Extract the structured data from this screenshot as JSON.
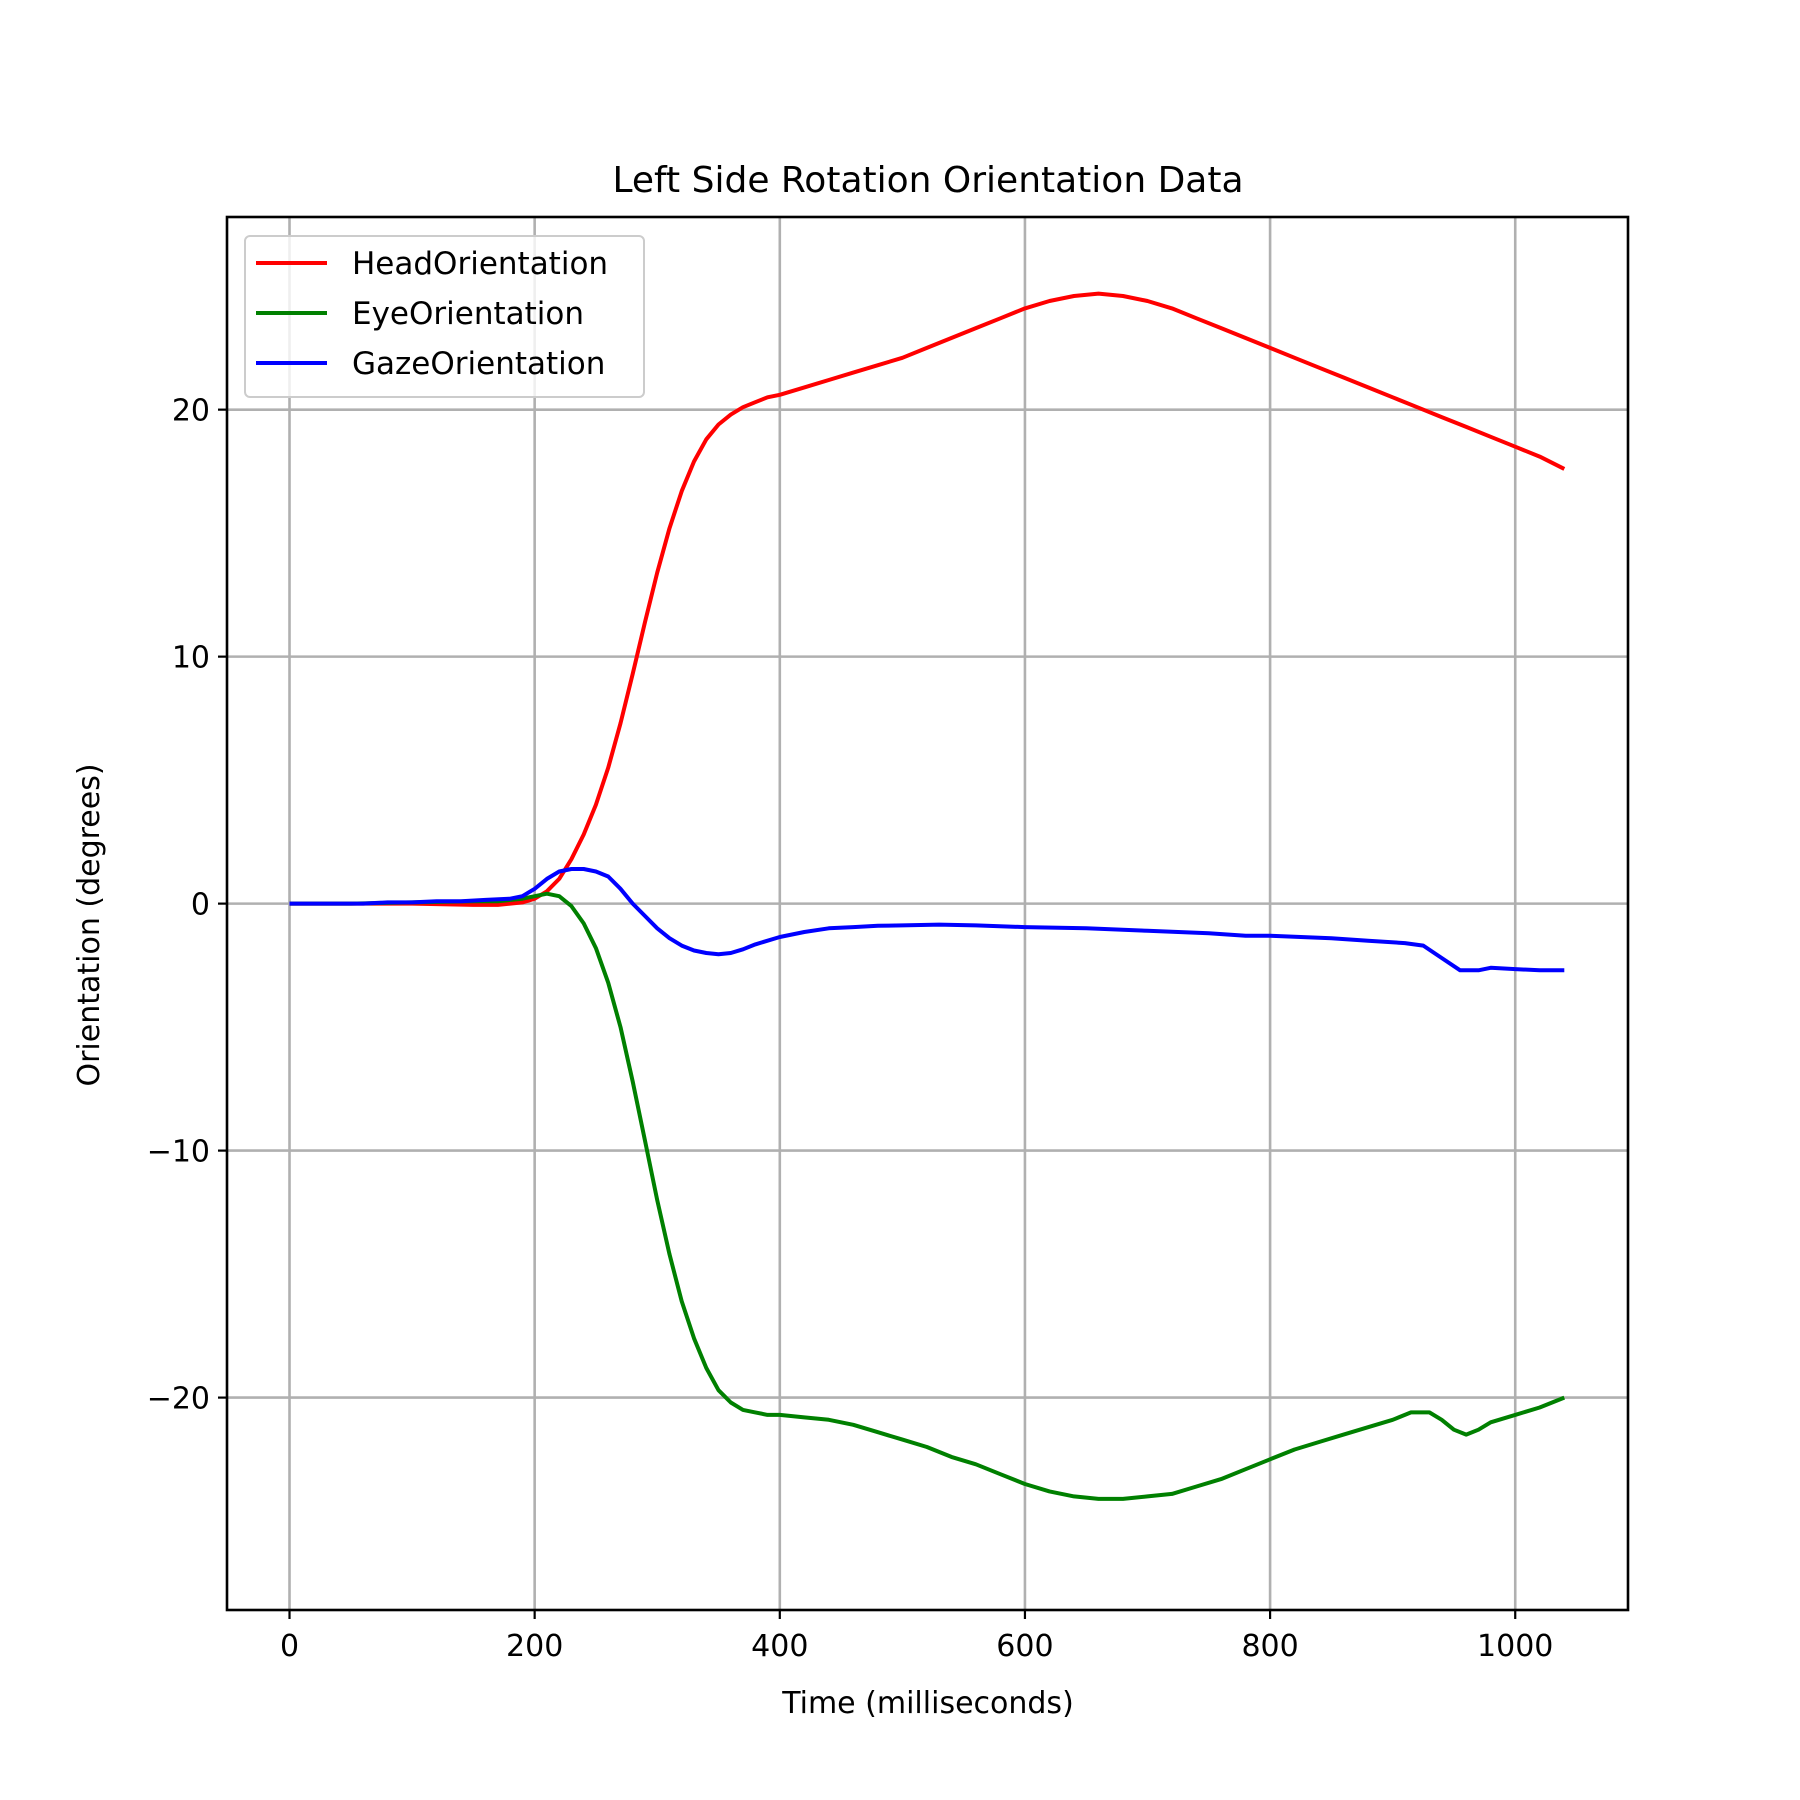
{
  "chart_data": {
    "type": "line",
    "title": "Left Side Rotation Orientation Data",
    "xlabel": "Time (milliseconds)",
    "ylabel": "Orientation (degrees)",
    "xlim": [
      -51,
      1092
    ],
    "ylim": [
      -28.6,
      27.8
    ],
    "x_ticks": [
      0,
      200,
      400,
      600,
      800,
      1000
    ],
    "x_tick_labels": [
      "0",
      "200",
      "400",
      "600",
      "800",
      "1000"
    ],
    "y_ticks": [
      -20,
      -10,
      0,
      10,
      20
    ],
    "y_tick_labels": [
      "−20",
      "−10",
      "0",
      "10",
      "20"
    ],
    "grid": true,
    "legend_position": "top-left",
    "series": [
      {
        "name": "HeadOrientation",
        "color": "#ff0000",
        "points": [
          [
            0,
            0.0
          ],
          [
            50,
            0.0
          ],
          [
            100,
            0.0
          ],
          [
            150,
            -0.05
          ],
          [
            170,
            -0.05
          ],
          [
            190,
            0.05
          ],
          [
            200,
            0.2
          ],
          [
            210,
            0.5
          ],
          [
            220,
            1.0
          ],
          [
            230,
            1.8
          ],
          [
            240,
            2.8
          ],
          [
            250,
            4.0
          ],
          [
            260,
            5.5
          ],
          [
            270,
            7.3
          ],
          [
            280,
            9.3
          ],
          [
            290,
            11.4
          ],
          [
            300,
            13.4
          ],
          [
            310,
            15.2
          ],
          [
            320,
            16.7
          ],
          [
            330,
            17.9
          ],
          [
            340,
            18.8
          ],
          [
            350,
            19.4
          ],
          [
            360,
            19.8
          ],
          [
            370,
            20.1
          ],
          [
            380,
            20.3
          ],
          [
            390,
            20.5
          ],
          [
            400,
            20.6
          ],
          [
            420,
            20.9
          ],
          [
            440,
            21.2
          ],
          [
            460,
            21.5
          ],
          [
            480,
            21.8
          ],
          [
            500,
            22.1
          ],
          [
            520,
            22.5
          ],
          [
            540,
            22.9
          ],
          [
            560,
            23.3
          ],
          [
            580,
            23.7
          ],
          [
            600,
            24.1
          ],
          [
            620,
            24.4
          ],
          [
            640,
            24.6
          ],
          [
            660,
            24.7
          ],
          [
            680,
            24.6
          ],
          [
            700,
            24.4
          ],
          [
            720,
            24.1
          ],
          [
            740,
            23.7
          ],
          [
            760,
            23.3
          ],
          [
            780,
            22.9
          ],
          [
            800,
            22.5
          ],
          [
            820,
            22.1
          ],
          [
            840,
            21.7
          ],
          [
            860,
            21.3
          ],
          [
            880,
            20.9
          ],
          [
            900,
            20.5
          ],
          [
            920,
            20.1
          ],
          [
            940,
            19.7
          ],
          [
            960,
            19.3
          ],
          [
            980,
            18.9
          ],
          [
            1000,
            18.5
          ],
          [
            1020,
            18.1
          ],
          [
            1040,
            17.6
          ]
        ]
      },
      {
        "name": "EyeOrientation",
        "color": "#008000",
        "points": [
          [
            0,
            0.0
          ],
          [
            50,
            0.0
          ],
          [
            100,
            0.05
          ],
          [
            150,
            0.1
          ],
          [
            170,
            0.1
          ],
          [
            190,
            0.2
          ],
          [
            200,
            0.3
          ],
          [
            210,
            0.4
          ],
          [
            220,
            0.3
          ],
          [
            230,
            -0.1
          ],
          [
            240,
            -0.8
          ],
          [
            250,
            -1.8
          ],
          [
            260,
            -3.2
          ],
          [
            270,
            -5.0
          ],
          [
            280,
            -7.2
          ],
          [
            290,
            -9.6
          ],
          [
            300,
            -12.0
          ],
          [
            310,
            -14.2
          ],
          [
            320,
            -16.1
          ],
          [
            330,
            -17.6
          ],
          [
            340,
            -18.8
          ],
          [
            350,
            -19.7
          ],
          [
            360,
            -20.2
          ],
          [
            370,
            -20.5
          ],
          [
            380,
            -20.6
          ],
          [
            390,
            -20.7
          ],
          [
            400,
            -20.7
          ],
          [
            420,
            -20.8
          ],
          [
            440,
            -20.9
          ],
          [
            460,
            -21.1
          ],
          [
            480,
            -21.4
          ],
          [
            500,
            -21.7
          ],
          [
            520,
            -22.0
          ],
          [
            540,
            -22.4
          ],
          [
            560,
            -22.7
          ],
          [
            580,
            -23.1
          ],
          [
            600,
            -23.5
          ],
          [
            620,
            -23.8
          ],
          [
            640,
            -24.0
          ],
          [
            660,
            -24.1
          ],
          [
            680,
            -24.1
          ],
          [
            700,
            -24.0
          ],
          [
            720,
            -23.9
          ],
          [
            740,
            -23.6
          ],
          [
            760,
            -23.3
          ],
          [
            780,
            -22.9
          ],
          [
            800,
            -22.5
          ],
          [
            820,
            -22.1
          ],
          [
            840,
            -21.8
          ],
          [
            860,
            -21.5
          ],
          [
            880,
            -21.2
          ],
          [
            900,
            -20.9
          ],
          [
            915,
            -20.6
          ],
          [
            930,
            -20.6
          ],
          [
            940,
            -20.9
          ],
          [
            950,
            -21.3
          ],
          [
            960,
            -21.5
          ],
          [
            970,
            -21.3
          ],
          [
            980,
            -21.0
          ],
          [
            1000,
            -20.7
          ],
          [
            1020,
            -20.4
          ],
          [
            1040,
            -20.0
          ]
        ]
      },
      {
        "name": "GazeOrientation",
        "color": "#0000ff",
        "points": [
          [
            0,
            0.0
          ],
          [
            20,
            0.0
          ],
          [
            40,
            0.0
          ],
          [
            60,
            0.0
          ],
          [
            80,
            0.05
          ],
          [
            100,
            0.05
          ],
          [
            120,
            0.1
          ],
          [
            140,
            0.1
          ],
          [
            160,
            0.15
          ],
          [
            180,
            0.2
          ],
          [
            190,
            0.3
          ],
          [
            200,
            0.6
          ],
          [
            210,
            1.0
          ],
          [
            220,
            1.3
          ],
          [
            230,
            1.4
          ],
          [
            240,
            1.4
          ],
          [
            250,
            1.3
          ],
          [
            260,
            1.1
          ],
          [
            270,
            0.6
          ],
          [
            280,
            0.0
          ],
          [
            290,
            -0.5
          ],
          [
            300,
            -1.0
          ],
          [
            310,
            -1.4
          ],
          [
            320,
            -1.7
          ],
          [
            330,
            -1.9
          ],
          [
            340,
            -2.0
          ],
          [
            350,
            -2.05
          ],
          [
            360,
            -2.0
          ],
          [
            370,
            -1.85
          ],
          [
            380,
            -1.65
          ],
          [
            400,
            -1.35
          ],
          [
            420,
            -1.15
          ],
          [
            440,
            -1.0
          ],
          [
            460,
            -0.95
          ],
          [
            480,
            -0.9
          ],
          [
            500,
            -0.88
          ],
          [
            530,
            -0.85
          ],
          [
            560,
            -0.88
          ],
          [
            600,
            -0.95
          ],
          [
            650,
            -1.0
          ],
          [
            700,
            -1.1
          ],
          [
            750,
            -1.2
          ],
          [
            780,
            -1.3
          ],
          [
            800,
            -1.3
          ],
          [
            850,
            -1.4
          ],
          [
            880,
            -1.5
          ],
          [
            910,
            -1.6
          ],
          [
            925,
            -1.7
          ],
          [
            940,
            -2.2
          ],
          [
            955,
            -2.7
          ],
          [
            970,
            -2.7
          ],
          [
            980,
            -2.6
          ],
          [
            1000,
            -2.65
          ],
          [
            1020,
            -2.7
          ],
          [
            1040,
            -2.7
          ]
        ]
      }
    ]
  }
}
